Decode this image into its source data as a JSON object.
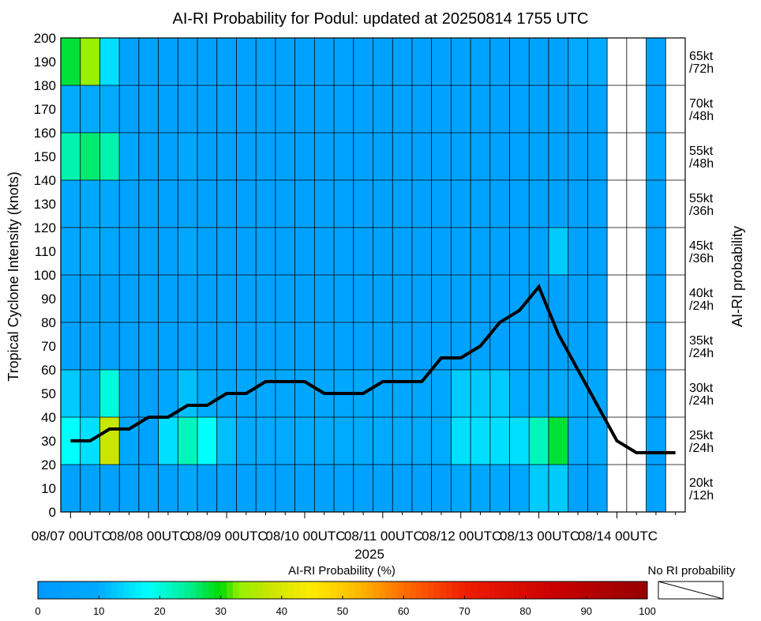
{
  "chart_data": {
    "type": "heatmap",
    "title": "AI-RI Probability for Podul: updated at 20250814 1755 UTC",
    "ylabel": "Tropical Cyclone Intensity (knots)",
    "right_label": "AI-RI probability",
    "xlabel": "2025",
    "ylim": [
      0,
      200
    ],
    "yticks": [
      "0",
      "10",
      "20",
      "30",
      "40",
      "50",
      "60",
      "70",
      "80",
      "90",
      "100",
      "110",
      "120",
      "130",
      "140",
      "150",
      "160",
      "170",
      "180",
      "190",
      "200"
    ],
    "xticks": [
      "08/07 00UTC",
      "08/08 00UTC",
      "08/09 00UTC",
      "08/10 00UTC",
      "08/11 00UTC",
      "08/12 00UTC",
      "08/13 00UTC",
      "08/14 00UTC"
    ],
    "time_step_hours": 6,
    "rows": [
      {
        "label": "20kt /12h",
        "l1": "20kt",
        "l2": "/12h",
        "range": [
          0,
          20
        ]
      },
      {
        "label": "25kt /24h",
        "l1": "25kt",
        "l2": "/24h",
        "range": [
          20,
          40
        ]
      },
      {
        "label": "30kt /24h",
        "l1": "30kt",
        "l2": "/24h",
        "range": [
          40,
          60
        ]
      },
      {
        "label": "35kt /24h",
        "l1": "35kt",
        "l2": "/24h",
        "range": [
          60,
          80
        ]
      },
      {
        "label": "40kt /24h",
        "l1": "40kt",
        "l2": "/24h",
        "range": [
          80,
          100
        ]
      },
      {
        "label": "45kt /36h",
        "l1": "45kt",
        "l2": "/36h",
        "range": [
          100,
          120
        ]
      },
      {
        "label": "55kt /36h",
        "l1": "55kt",
        "l2": "/36h",
        "range": [
          120,
          140
        ]
      },
      {
        "label": "55kt /48h",
        "l1": "55kt",
        "l2": "/48h",
        "range": [
          140,
          160
        ]
      },
      {
        "label": "70kt /48h",
        "l1": "70kt",
        "l2": "/48h",
        "range": [
          160,
          180
        ]
      },
      {
        "label": "65kt /72h",
        "l1": "65kt",
        "l2": "/72h",
        "range": [
          180,
          200
        ]
      }
    ],
    "probabilities_percent": [
      [
        5,
        5,
        5,
        5,
        5,
        5,
        8,
        5,
        5,
        5,
        5,
        5,
        5,
        5,
        5,
        5,
        5,
        5,
        5,
        5,
        8,
        8,
        8,
        8,
        13,
        13,
        5,
        5,
        null,
        null,
        5,
        null
      ],
      [
        18,
        15,
        38,
        8,
        5,
        15,
        22,
        18,
        12,
        10,
        10,
        10,
        10,
        10,
        10,
        10,
        10,
        10,
        10,
        10,
        15,
        15,
        15,
        15,
        22,
        28,
        10,
        10,
        null,
        null,
        5,
        null
      ],
      [
        13,
        10,
        20,
        5,
        5,
        8,
        12,
        10,
        8,
        8,
        8,
        8,
        8,
        8,
        8,
        8,
        8,
        8,
        8,
        8,
        13,
        13,
        13,
        10,
        10,
        10,
        8,
        8,
        null,
        null,
        5,
        null
      ],
      [
        5,
        5,
        5,
        5,
        5,
        5,
        5,
        5,
        5,
        5,
        5,
        5,
        5,
        5,
        5,
        5,
        5,
        5,
        5,
        5,
        5,
        5,
        5,
        5,
        5,
        5,
        5,
        5,
        null,
        null,
        5,
        null
      ],
      [
        5,
        5,
        5,
        5,
        5,
        5,
        5,
        5,
        5,
        5,
        5,
        5,
        5,
        5,
        5,
        5,
        5,
        5,
        5,
        5,
        5,
        5,
        5,
        5,
        5,
        5,
        5,
        5,
        null,
        null,
        5,
        null
      ],
      [
        8,
        10,
        8,
        5,
        5,
        5,
        8,
        5,
        5,
        5,
        5,
        5,
        5,
        5,
        5,
        5,
        5,
        5,
        5,
        5,
        5,
        5,
        5,
        5,
        5,
        13,
        5,
        5,
        null,
        null,
        5,
        null
      ],
      [
        8,
        8,
        8,
        5,
        5,
        5,
        5,
        5,
        5,
        5,
        5,
        5,
        5,
        5,
        5,
        5,
        5,
        5,
        5,
        5,
        5,
        5,
        5,
        5,
        5,
        5,
        5,
        5,
        null,
        null,
        5,
        null
      ],
      [
        23,
        26,
        23,
        8,
        5,
        5,
        8,
        5,
        5,
        5,
        5,
        5,
        5,
        5,
        5,
        5,
        5,
        5,
        5,
        5,
        5,
        5,
        5,
        5,
        5,
        5,
        5,
        5,
        null,
        null,
        8,
        null
      ],
      [
        10,
        10,
        10,
        5,
        5,
        5,
        5,
        5,
        5,
        5,
        5,
        5,
        5,
        5,
        5,
        5,
        5,
        5,
        5,
        5,
        5,
        5,
        5,
        5,
        5,
        5,
        5,
        5,
        null,
        null,
        5,
        null
      ],
      [
        28,
        33,
        15,
        5,
        5,
        5,
        5,
        5,
        5,
        5,
        5,
        5,
        5,
        5,
        5,
        5,
        5,
        5,
        5,
        5,
        5,
        5,
        5,
        5,
        5,
        5,
        10,
        10,
        null,
        null,
        5,
        null
      ]
    ],
    "intensity_series": {
      "x_index": [
        0,
        1,
        2,
        3,
        4,
        5,
        6,
        7,
        8,
        9,
        10,
        11,
        12,
        13,
        14,
        15,
        16,
        17,
        18,
        19,
        20,
        21,
        22,
        23,
        24,
        25,
        26,
        27,
        28,
        29,
        30,
        31
      ],
      "y_knots": [
        30,
        30,
        35,
        35,
        40,
        40,
        45,
        45,
        50,
        50,
        55,
        55,
        55,
        50,
        50,
        50,
        55,
        55,
        55,
        65,
        65,
        70,
        80,
        85,
        95,
        75,
        60,
        45,
        30,
        25,
        25,
        25
      ]
    },
    "colorbar": {
      "label": "AI-RI Probability (%)",
      "ticks": [
        "0",
        "10",
        "20",
        "30",
        "40",
        "50",
        "60",
        "70",
        "80",
        "90",
        "100"
      ],
      "no_ri_label": "No RI probability"
    }
  }
}
